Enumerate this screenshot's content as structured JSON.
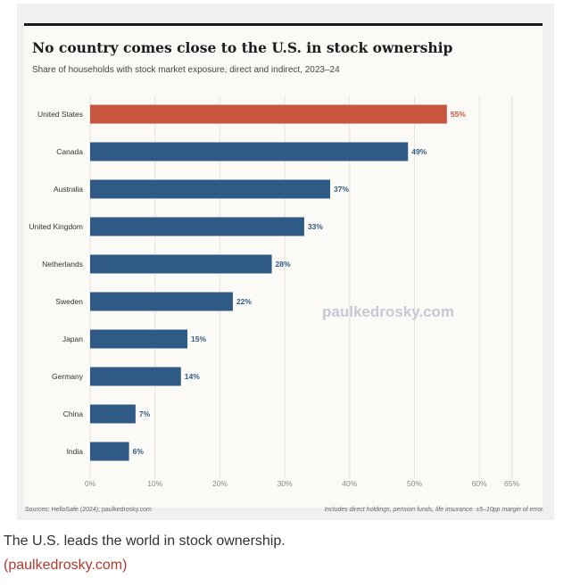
{
  "chart_data": {
    "type": "bar",
    "orientation": "horizontal",
    "title": "No country comes close to the U.S. in stock ownership",
    "subtitle": "Share of households with stock market exposure, direct and indirect, 2023–24",
    "categories": [
      "United States",
      "Canada",
      "Australia",
      "United Kingdom",
      "Netherlands",
      "Sweden",
      "Japan",
      "Germany",
      "China",
      "India"
    ],
    "values": [
      55,
      49,
      37,
      33,
      28,
      22,
      15,
      14,
      7,
      6
    ],
    "value_labels": [
      "55%",
      "49%",
      "37%",
      "33%",
      "28%",
      "22%",
      "15%",
      "14%",
      "7%",
      "6%"
    ],
    "x_ticks": [
      0,
      10,
      20,
      30,
      40,
      50,
      60,
      65
    ],
    "x_tick_labels": [
      "0%",
      "10%",
      "20%",
      "30%",
      "40%",
      "50%",
      "60%",
      "65%"
    ],
    "xlim": [
      0,
      65
    ],
    "grid": "vertical",
    "highlight_category": "United States",
    "colors": {
      "highlight": "#c8553d",
      "default": "#2f5a86"
    }
  },
  "watermark": "paulkedrosky.com",
  "footer": {
    "sources": "Sources: HelloSafe (2024); paulkedrosky.com",
    "note": "Includes direct holdings, pension funds, life insurance. ±5–10pp margin of error."
  },
  "caption": "The U.S. leads the world in stock ownership.",
  "source_link": "(paulkedrosky.com)"
}
